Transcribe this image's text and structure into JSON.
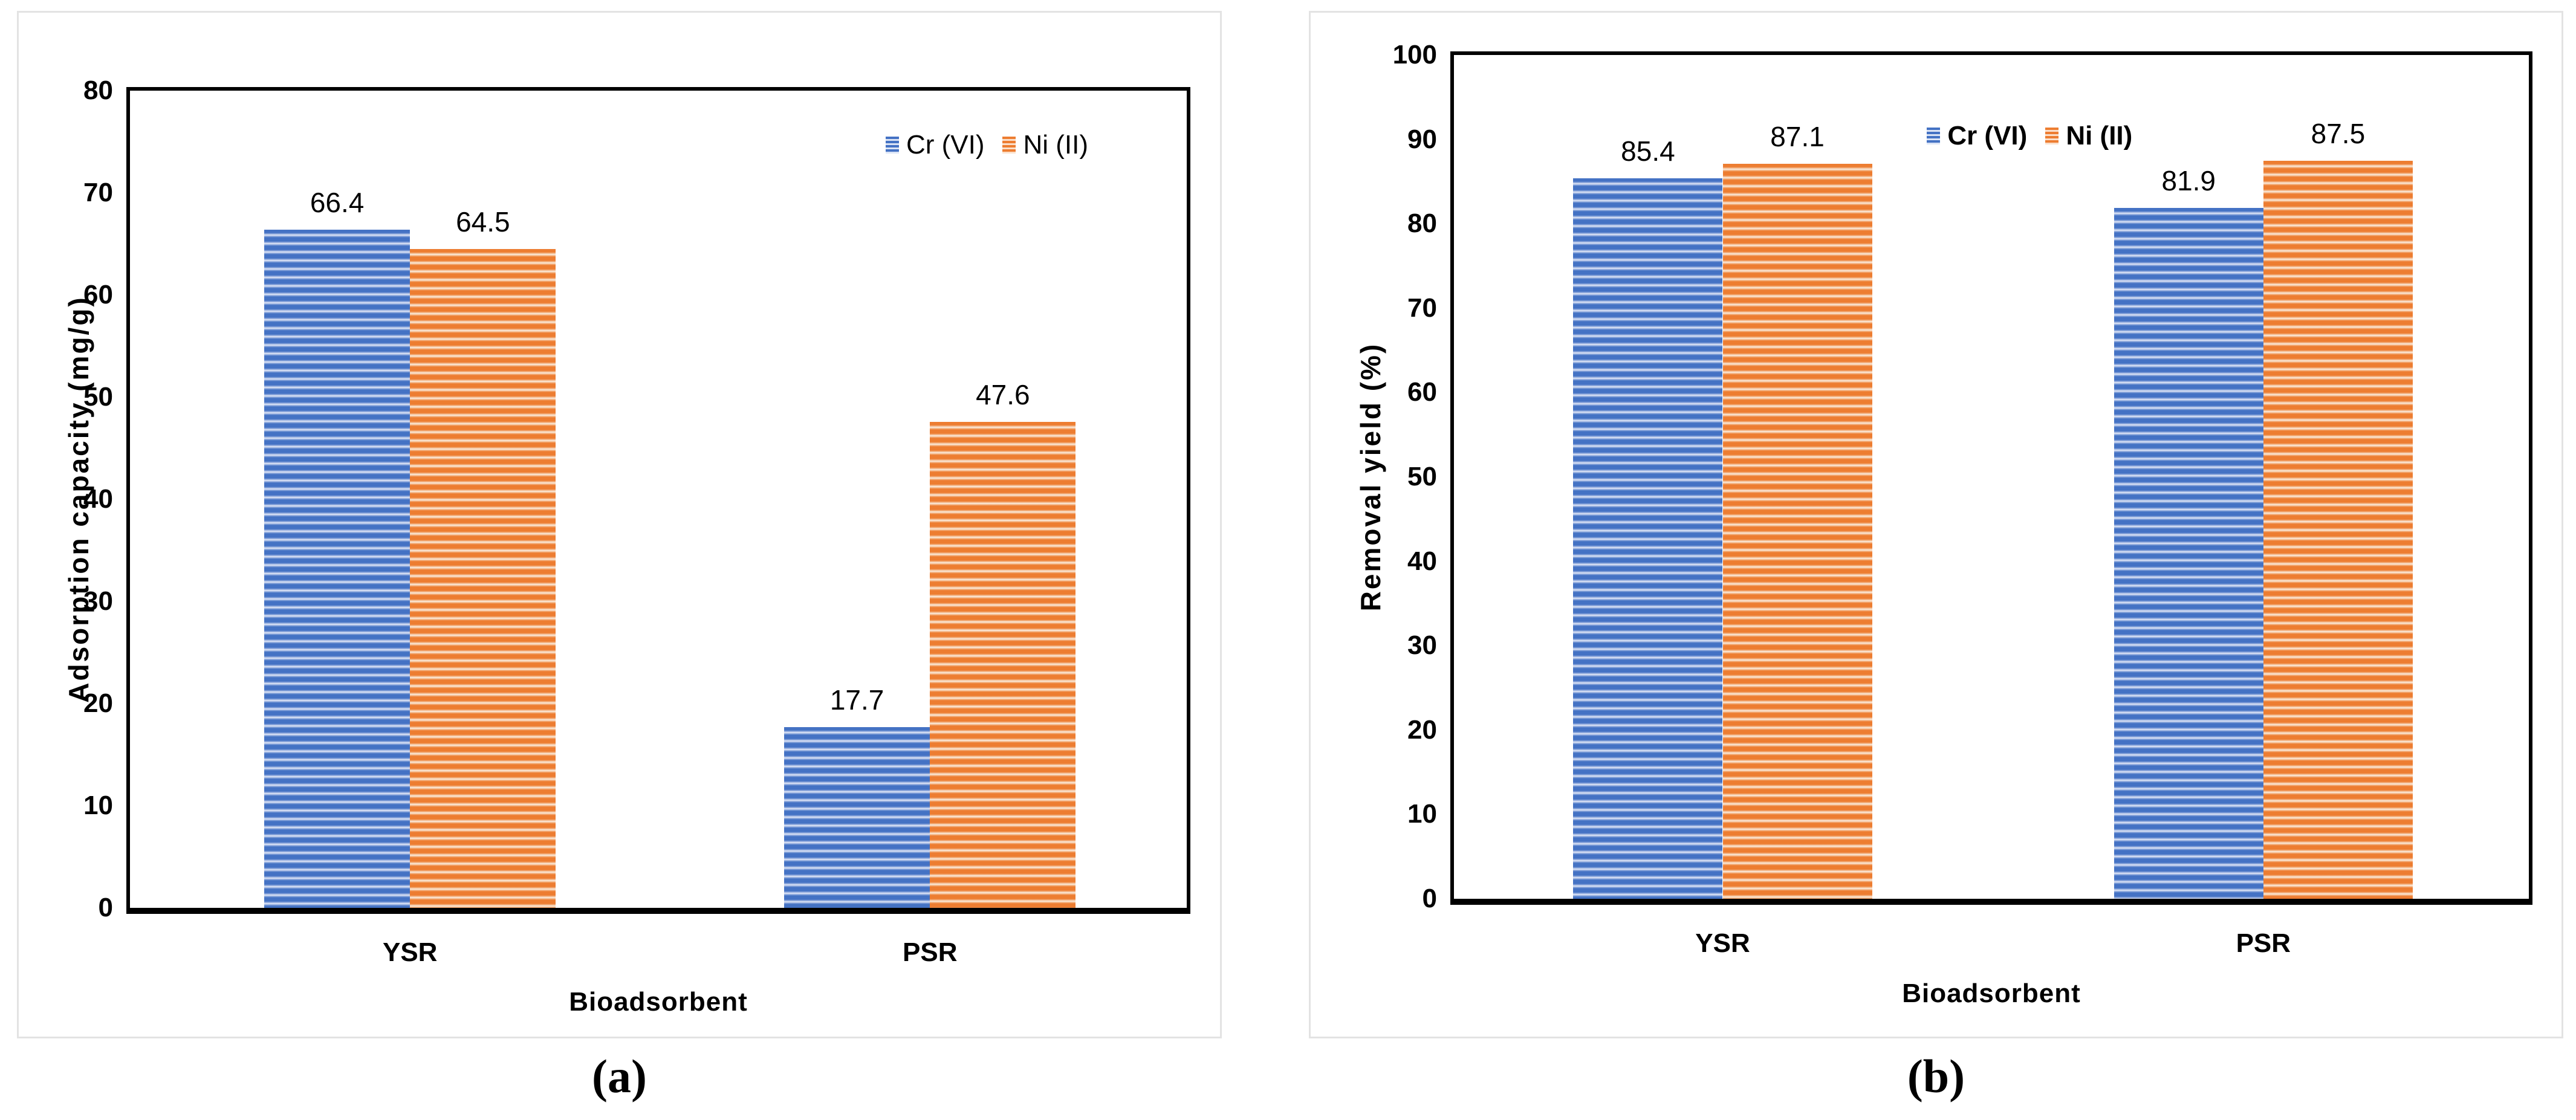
{
  "captions": {
    "a": "(a)",
    "b": "(b)"
  },
  "colors": {
    "cr_series_blue": "#4472C4",
    "ni_series_orange": "#ED7D31",
    "axis": "#000000",
    "panel_border": "#E3E3E3",
    "background": "#FFFFFF"
  },
  "chart_data": [
    {
      "type": "bar",
      "panel_label": "(a)",
      "title": "",
      "categories": [
        "YSR",
        "PSR"
      ],
      "series": [
        {
          "name": "Cr (VI)",
          "color": "#4472C4",
          "pattern": "horizontal-stripes",
          "values": [
            66.4,
            17.7
          ]
        },
        {
          "name": "Ni (II)",
          "color": "#ED7D31",
          "pattern": "horizontal-stripes",
          "values": [
            64.5,
            47.6
          ]
        }
      ],
      "xlabel": "Bioadsorbent",
      "ylabel": "Adsorption capacity (mg/g)",
      "ylim": [
        0,
        80
      ],
      "ytick_step": 10,
      "grid": false,
      "data_labels": true,
      "legend_position": "inside-top-right",
      "layout": {
        "group_centers_pct": [
          26.5,
          75.7
        ],
        "bar_width_pct": 13.8
      }
    },
    {
      "type": "bar",
      "panel_label": "(b)",
      "title": "",
      "categories": [
        "YSR",
        "PSR"
      ],
      "series": [
        {
          "name": "Cr (VI)",
          "color": "#4472C4",
          "pattern": "horizontal-stripes",
          "values": [
            85.4,
            81.9
          ]
        },
        {
          "name": "Ni (II)",
          "color": "#ED7D31",
          "pattern": "horizontal-stripes",
          "values": [
            87.1,
            87.5
          ]
        }
      ],
      "xlabel": "Bioadsorbent",
      "ylabel": "Removal yield (%)",
      "ylim": [
        0,
        100
      ],
      "ytick_step": 10,
      "grid": false,
      "data_labels": true,
      "legend_position": "inside-top-center",
      "layout": {
        "group_centers_pct": [
          25.0,
          75.3
        ],
        "bar_width_pct": 13.9
      }
    }
  ]
}
